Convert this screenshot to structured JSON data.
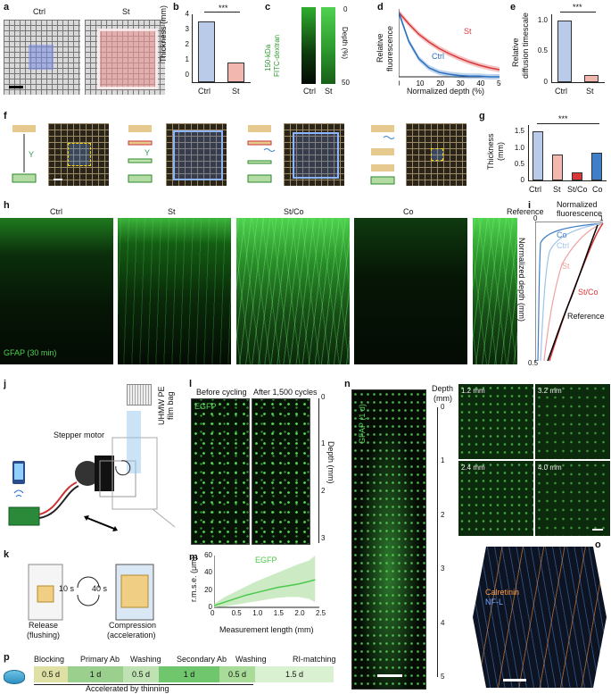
{
  "panels": {
    "a": "a",
    "b": "b",
    "c": "c",
    "d": "d",
    "e": "e",
    "f": "f",
    "g": "g",
    "h": "h",
    "i": "i",
    "j": "j",
    "k": "k",
    "l": "l",
    "m": "m",
    "n": "n",
    "o": "o",
    "p": "p"
  },
  "a": {
    "ctrl": "Ctrl",
    "st": "St"
  },
  "b": {
    "ylabel": "Thickness (mm)",
    "sig": "***",
    "yticks": [
      "0",
      "1",
      "2",
      "3",
      "4"
    ],
    "cats": [
      "Ctrl",
      "St"
    ]
  },
  "c": {
    "label1": "150-kDa",
    "label2": "FITC-dextran",
    "depth": "Depth (%)",
    "top": "0",
    "bottom": "50",
    "cats": [
      "Ctrl",
      "St"
    ]
  },
  "d": {
    "ylabel1": "Relative",
    "ylabel2": "fluorescence",
    "xlabel": "Normalized depth (%)",
    "xticks": [
      "0",
      "10",
      "20",
      "30",
      "40",
      "50"
    ],
    "st": "St",
    "ctrl": "Ctrl"
  },
  "e": {
    "ylabel1": "Relative",
    "ylabel2": "diffusion timescale",
    "sig": "***",
    "yticks": [
      "0",
      "0.5",
      "1.0"
    ],
    "cats": [
      "Ctrl",
      "St"
    ]
  },
  "g": {
    "ylabel1": "Thickness",
    "ylabel2": "(mm)",
    "sig": "***",
    "yticks": [
      "0",
      "0.5",
      "1.0",
      "1.5"
    ],
    "cats": [
      "Ctrl",
      "St",
      "St/Co",
      "Co"
    ]
  },
  "h": {
    "labels": [
      "Ctrl",
      "St",
      "St/Co",
      "Co",
      "Reference"
    ],
    "stain": "GFAP (30 min)"
  },
  "i": {
    "title1": "Normalized",
    "title2": "fluorescence",
    "top0": "0",
    "top1": "1",
    "ylabel": "Normalized depth (mm)",
    "y0": "0",
    "y1": "0.5",
    "co": "Co",
    "ctrl": "Ctrl",
    "st": "St",
    "stco": "St/Co",
    "ref": "Reference"
  },
  "j": {
    "motor": "Stepper motor",
    "bag1": "UHMW PE",
    "bag2": "film bag"
  },
  "k": {
    "t1": "10 s",
    "t2": "40 s",
    "release": "Release",
    "flushing": "(flushing)",
    "compression": "Compression",
    "accel": "(acceleration)"
  },
  "l": {
    "before": "Before cycling",
    "after": "After 1,500 cycles",
    "stain": "EGFP",
    "depth": "Depth (mm)",
    "ticks": [
      "0",
      "1",
      "2",
      "3"
    ]
  },
  "m": {
    "stain": "EGFP",
    "ylabel": "r.m.s.e. (μm)",
    "xlabel": "Measurement length (mm)",
    "yticks": [
      "0",
      "20",
      "40",
      "60"
    ],
    "xticks": [
      "0",
      "0.5",
      "1.0",
      "1.5",
      "2.0",
      "2.5"
    ]
  },
  "n": {
    "stain": "GFAP (1 d)",
    "depth1": "Depth",
    "depth2": "(mm)",
    "ticks": [
      "0",
      "1",
      "2",
      "3",
      "4",
      "5"
    ],
    "insets": [
      "1.2 mm",
      "3.2 mm",
      "2.4 mm",
      "4.0 mm"
    ]
  },
  "o": {
    "calretinin": "Calretinin",
    "nfl": "NF-L"
  },
  "p": {
    "heads": [
      "Blocking",
      "Primary Ab",
      "Washing",
      "Secondary Ab",
      "Washing",
      "RI-matching"
    ],
    "durations": [
      "0.5 d",
      "1 d",
      "0.5 d",
      "1 d",
      "0.5 d",
      "1.5 d"
    ],
    "accel": "Accelerated by thinning"
  },
  "colors": {
    "ctrl": "#2a6fc0",
    "st": "#d9383a",
    "co": "#3f7fc8",
    "stco": "#c0392b",
    "green": "#4cc94c"
  },
  "chart_data": [
    {
      "id": "b",
      "type": "bar",
      "categories": [
        "Ctrl",
        "St"
      ],
      "values": [
        4.0,
        1.3
      ],
      "ylabel": "Thickness (mm)",
      "ylim": [
        0,
        4.5
      ]
    },
    {
      "id": "d",
      "type": "line",
      "xlabel": "Normalized depth (%)",
      "ylabel": "Relative fluorescence",
      "xlim": [
        0,
        50
      ],
      "x": [
        0,
        5,
        10,
        15,
        20,
        25,
        30,
        35,
        40,
        45,
        50
      ],
      "series": [
        {
          "name": "St",
          "values": [
            1.0,
            0.82,
            0.66,
            0.54,
            0.44,
            0.36,
            0.29,
            0.23,
            0.18,
            0.14,
            0.11
          ]
        },
        {
          "name": "Ctrl",
          "values": [
            1.0,
            0.55,
            0.28,
            0.14,
            0.07,
            0.04,
            0.02,
            0.01,
            0.01,
            0.0,
            0.0
          ]
        }
      ]
    },
    {
      "id": "e",
      "type": "bar",
      "categories": [
        "Ctrl",
        "St"
      ],
      "values": [
        1.0,
        0.12
      ],
      "ylabel": "Relative diffusion timescale",
      "ylim": [
        0,
        1.1
      ]
    },
    {
      "id": "g",
      "type": "bar",
      "categories": [
        "Ctrl",
        "St",
        "St/Co",
        "Co"
      ],
      "values": [
        1.5,
        0.8,
        0.25,
        0.85
      ],
      "ylabel": "Thickness (mm)",
      "ylim": [
        0,
        1.7
      ]
    },
    {
      "id": "m",
      "type": "area",
      "xlabel": "Measurement length (mm)",
      "ylabel": "r.m.s.e. (μm)",
      "xlim": [
        0,
        2.5
      ],
      "ylim": [
        0,
        60
      ],
      "x": [
        0,
        0.25,
        0.5,
        0.75,
        1.0,
        1.25,
        1.5,
        1.75,
        2.0,
        2.25,
        2.4
      ],
      "series": [
        {
          "name": "EGFP",
          "values": [
            2,
            6,
            10,
            14,
            17,
            20,
            23,
            25,
            27,
            30,
            32
          ]
        }
      ],
      "upper": [
        4,
        12,
        18,
        24,
        30,
        35,
        40,
        45,
        50,
        54,
        60
      ],
      "lower": [
        0,
        1,
        3,
        5,
        7,
        9,
        11,
        12,
        12,
        10,
        6
      ]
    }
  ]
}
